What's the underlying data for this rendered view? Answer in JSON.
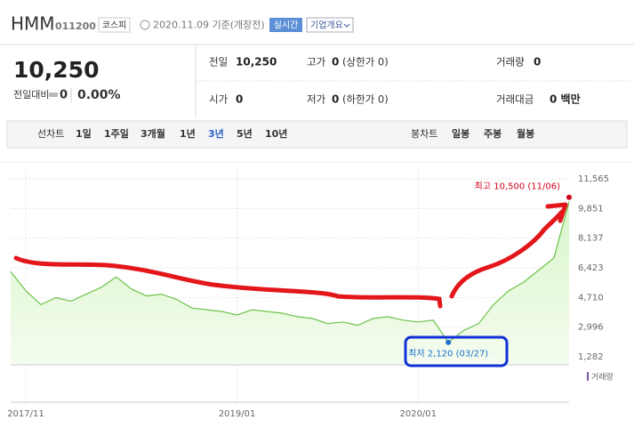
{
  "header": {
    "name": "HMM",
    "code": "011200",
    "market": "코스피",
    "date": "2020.11.09 기준(개장전)",
    "realtime": "실시간",
    "company": "기업개요"
  },
  "price": {
    "current": "10,250",
    "change_label": "전일대비",
    "change": "0",
    "change_rate": "0.00%"
  },
  "stats": [
    [
      {
        "label": "전일",
        "value": "10,250"
      },
      {
        "label": "고가",
        "value": "0",
        "note": "(상한가 0)"
      },
      {
        "label": "거래량",
        "value": "0"
      }
    ],
    [
      {
        "label": "시가",
        "value": "0"
      },
      {
        "label": "저가",
        "value": "0",
        "note": "(하한가 0)"
      },
      {
        "label": "거래대금",
        "value": "0 백만"
      }
    ]
  ],
  "tabs": {
    "line_label": "선차트",
    "line": [
      "1일",
      "1주일",
      "3개월",
      "1년",
      "3년",
      "5년",
      "10년"
    ],
    "selected": "3년",
    "candle_label": "봉차트",
    "candle": [
      "일봉",
      "주봉",
      "월봉"
    ]
  },
  "chart_data": {
    "type": "line",
    "categories": [
      null,
      "2017/11",
      null,
      null,
      null,
      null,
      null,
      null,
      null,
      null,
      null,
      null,
      null,
      null,
      null,
      "2019/01",
      null,
      null,
      null,
      null,
      null,
      null,
      null,
      null,
      null,
      null,
      null,
      "2020/01",
      null,
      null,
      null,
      null,
      null,
      null,
      null,
      null,
      null,
      null
    ],
    "series": [
      {
        "color": "#6cc24a",
        "values": [
          6200,
          5100,
          4300,
          4700,
          4500,
          4900,
          5300,
          5900,
          5200,
          4800,
          4900,
          4600,
          4100,
          4000,
          3900,
          3700,
          4000,
          3900,
          3800,
          3600,
          3500,
          3200,
          3300,
          3100,
          3500,
          3600,
          3400,
          3300,
          3400,
          2120,
          2800,
          3200,
          4300,
          5100,
          5600,
          6300,
          7000,
          10250
        ]
      }
    ],
    "ylim": [
      1282,
      11565
    ],
    "yticks": [
      {
        "value": 11565,
        "label": "11,565"
      },
      {
        "value": 9851,
        "label": "9,851"
      },
      {
        "value": 8137,
        "label": "8,137"
      },
      {
        "value": 6423,
        "label": "6,423"
      },
      {
        "value": 4710,
        "label": "4,710"
      },
      {
        "value": 2996,
        "label": "2,996"
      },
      {
        "value": 1282,
        "label": "1,282"
      }
    ],
    "grid": true,
    "annotations": [
      {
        "text": "최고 10,500 (11/06)",
        "value": 10500,
        "color": "#d0021b"
      },
      {
        "text": "최저 2,120 (03/27)",
        "value": 2120,
        "color": "#1a6fd0"
      }
    ],
    "volume_label": "거래량"
  }
}
